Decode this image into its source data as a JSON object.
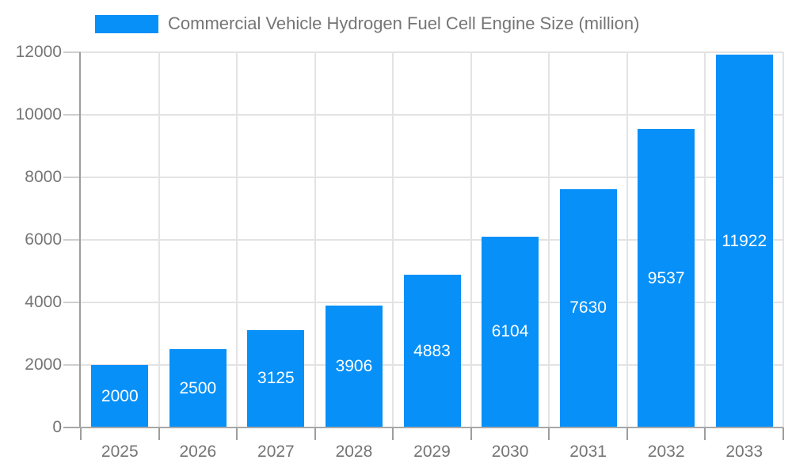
{
  "chart_data": {
    "type": "bar",
    "title": "Commercial Vehicle Hydrogen Fuel Cell Engine Size (million)",
    "legend": [
      "Commercial Vehicle Hydrogen Fuel Cell Engine Size (million)"
    ],
    "legend_position": "top",
    "categories": [
      "2025",
      "2026",
      "2027",
      "2028",
      "2029",
      "2030",
      "2031",
      "2032",
      "2033"
    ],
    "values": [
      2000,
      2500,
      3125,
      3906,
      4883,
      6104,
      7630,
      9537,
      11922
    ],
    "xlabel": "",
    "ylabel": "",
    "ylim": [
      0,
      12000
    ],
    "yticks": [
      0,
      2000,
      4000,
      6000,
      8000,
      10000,
      12000
    ],
    "grid": true,
    "colors": {
      "bar": "#0690f8",
      "bar_label_text": "#ffffff",
      "axis_text": "#757575",
      "grid_line": "#e3e3e3",
      "tick_line": "#cfcfcf",
      "axis_line": "#9e9e9e",
      "baseline": "#a8a8a8",
      "background": "#ffffff"
    }
  }
}
